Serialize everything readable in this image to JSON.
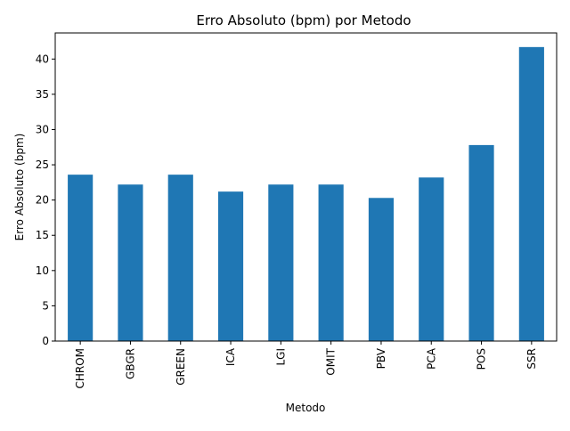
{
  "chart_data": {
    "type": "bar",
    "title": "Erro Absoluto (bpm) por Metodo",
    "xlabel": "Metodo",
    "ylabel": "Erro Absoluto (bpm)",
    "categories": [
      "CHROM",
      "GBGR",
      "GREEN",
      "ICA",
      "LGI",
      "OMIT",
      "PBV",
      "PCA",
      "POS",
      "SSR"
    ],
    "values": [
      23.6,
      22.2,
      23.6,
      21.2,
      22.2,
      22.2,
      20.3,
      23.2,
      27.8,
      41.7
    ],
    "ylim": [
      0,
      43.7
    ],
    "yticks": [
      0,
      5,
      10,
      15,
      20,
      25,
      30,
      35,
      40
    ],
    "grid": false,
    "legend": "none",
    "bar_color": "#1f77b4"
  }
}
